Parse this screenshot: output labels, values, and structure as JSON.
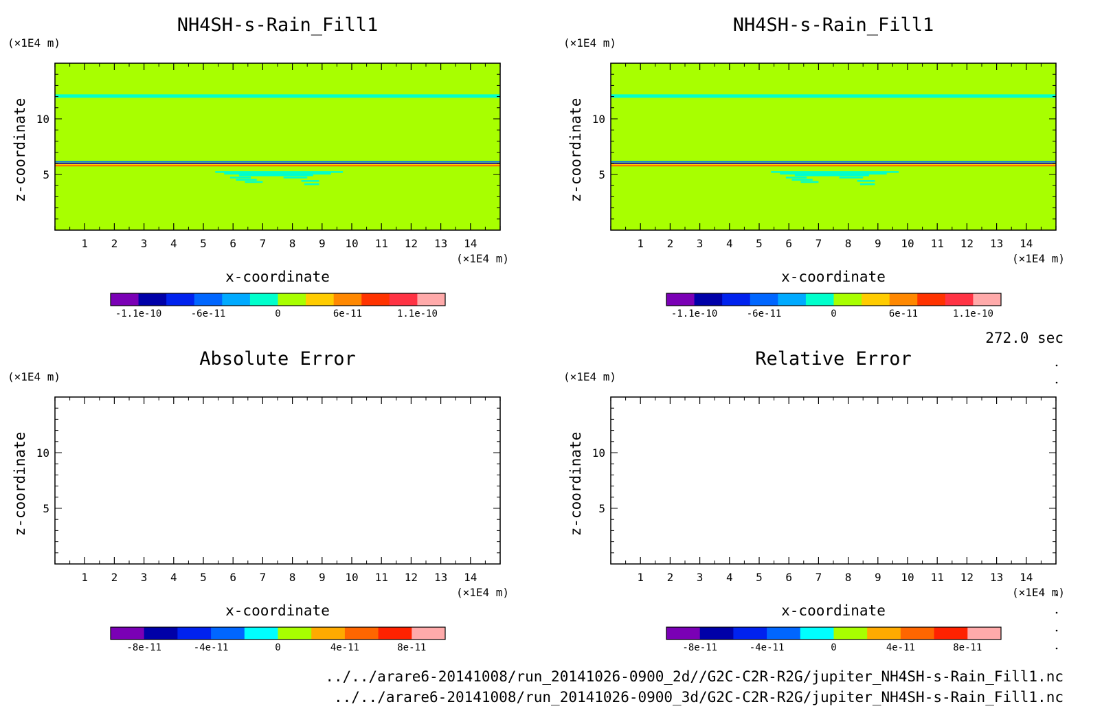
{
  "time_label": "272.0 sec",
  "footer": {
    "line1": "../../arare6-20141008/run_20141026-0900_2d//G2C-C2R-R2G/jupiter_NH4SH-s-Rain_Fill1.nc",
    "line2": "../../arare6-20141008/run_20141026-0900_3d/G2C-C2R-R2G/jupiter_NH4SH-s-Rain_Fill1.nc"
  },
  "colors": {
    "background_field": "#a8ff00",
    "band": "#00ffcc",
    "frame": "#000000"
  },
  "chart_data": [
    {
      "type": "heatmap",
      "title": "NH4SH-s-Rain_Fill1",
      "xlabel": "x-coordinate",
      "ylabel": "z-coordinate",
      "x_unit": "(×1E4 m)",
      "y_unit": "(×1E4 m)",
      "xlim": [
        0,
        15
      ],
      "ylim": [
        0,
        15
      ],
      "x_ticks": [
        "1",
        "2",
        "3",
        "4",
        "5",
        "6",
        "7",
        "8",
        "9",
        "10",
        "11",
        "12",
        "13",
        "14"
      ],
      "y_ticks": [
        "5",
        "10"
      ],
      "field": "uniform value 0 with thin bands near z=12 and z=6",
      "colorbar": {
        "colors": [
          "#7a00b5",
          "#0000a8",
          "#0022ee",
          "#0066ff",
          "#00aaff",
          "#00ffcc",
          "#a8ff00",
          "#ffcc00",
          "#ff8800",
          "#ff3300",
          "#ff3344",
          "#ffaaaa"
        ],
        "labels": [
          "-1.1e-10",
          "-6e-11",
          "0",
          "6e-11",
          "1.1e-10"
        ]
      }
    },
    {
      "type": "heatmap",
      "title": "NH4SH-s-Rain_Fill1",
      "xlabel": "x-coordinate",
      "ylabel": "z-coordinate",
      "x_unit": "(×1E4 m)",
      "y_unit": "(×1E4 m)",
      "xlim": [
        0,
        15
      ],
      "ylim": [
        0,
        15
      ],
      "x_ticks": [
        "1",
        "2",
        "3",
        "4",
        "5",
        "6",
        "7",
        "8",
        "9",
        "10",
        "11",
        "12",
        "13",
        "14"
      ],
      "y_ticks": [
        "5",
        "10"
      ],
      "field": "uniform value 0 with thin bands near z=12 and z=6",
      "colorbar": {
        "colors": [
          "#7a00b5",
          "#0000a8",
          "#0022ee",
          "#0066ff",
          "#00aaff",
          "#00ffcc",
          "#a8ff00",
          "#ffcc00",
          "#ff8800",
          "#ff3300",
          "#ff3344",
          "#ffaaaa"
        ],
        "labels": [
          "-1.1e-10",
          "-6e-11",
          "0",
          "6e-11",
          "1.1e-10"
        ]
      }
    },
    {
      "type": "heatmap",
      "title": "Absolute Error",
      "xlabel": "x-coordinate",
      "ylabel": "z-coordinate",
      "x_unit": "(×1E4 m)",
      "y_unit": "(×1E4 m)",
      "xlim": [
        0,
        15
      ],
      "ylim": [
        0,
        15
      ],
      "x_ticks": [
        "1",
        "2",
        "3",
        "4",
        "5",
        "6",
        "7",
        "8",
        "9",
        "10",
        "11",
        "12",
        "13",
        "14"
      ],
      "y_ticks": [
        "5",
        "10"
      ],
      "field": "empty",
      "colorbar": {
        "colors": [
          "#7a00b5",
          "#0000a8",
          "#0022ee",
          "#0066ff",
          "#00ffff",
          "#a8ff00",
          "#ffaa00",
          "#ff6600",
          "#ff2200",
          "#ffaaaa"
        ],
        "labels": [
          "-8e-11",
          "-4e-11",
          "0",
          "4e-11",
          "8e-11"
        ]
      }
    },
    {
      "type": "heatmap",
      "title": "Relative Error",
      "xlabel": "x-coordinate",
      "ylabel": "z-coordinate",
      "x_unit": "(×1E4 m)",
      "y_unit": "(×1E4 m)",
      "xlim": [
        0,
        15
      ],
      "ylim": [
        0,
        15
      ],
      "x_ticks": [
        "1",
        "2",
        "3",
        "4",
        "5",
        "6",
        "7",
        "8",
        "9",
        "10",
        "11",
        "12",
        "13",
        "14"
      ],
      "y_ticks": [
        "5",
        "10"
      ],
      "field": "empty",
      "colorbar": {
        "colors": [
          "#7a00b5",
          "#0000a8",
          "#0022ee",
          "#0066ff",
          "#00ffff",
          "#a8ff00",
          "#ffaa00",
          "#ff6600",
          "#ff2200",
          "#ffaaaa"
        ],
        "labels": [
          "-8e-11",
          "-4e-11",
          "0",
          "4e-11",
          "8e-11"
        ]
      }
    }
  ]
}
